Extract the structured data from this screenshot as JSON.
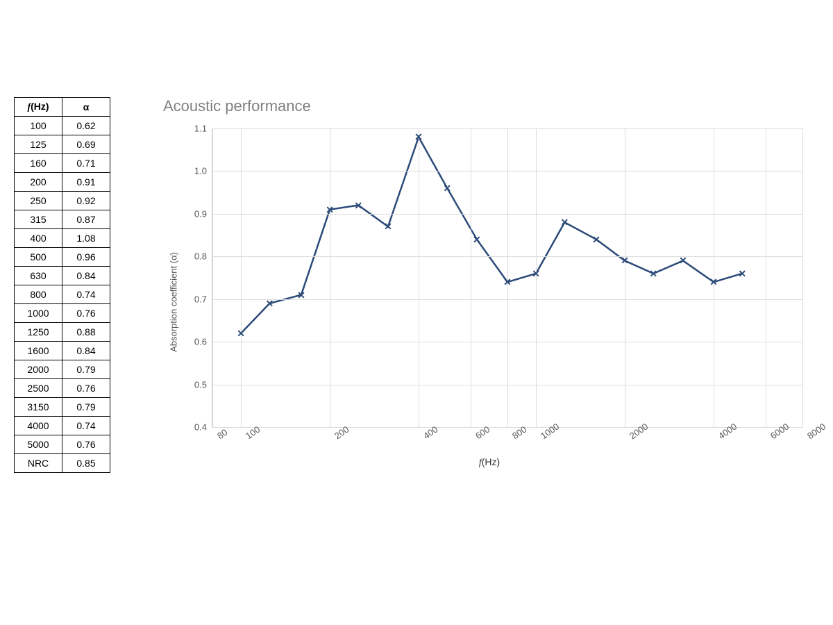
{
  "table": {
    "header_freq": "f(Hz)",
    "header_alpha": "α",
    "rows": [
      {
        "f": "100",
        "a": "0.62"
      },
      {
        "f": "125",
        "a": "0.69"
      },
      {
        "f": "160",
        "a": "0.71"
      },
      {
        "f": "200",
        "a": "0.91"
      },
      {
        "f": "250",
        "a": "0.92"
      },
      {
        "f": "315",
        "a": "0.87"
      },
      {
        "f": "400",
        "a": "1.08"
      },
      {
        "f": "500",
        "a": "0.96"
      },
      {
        "f": "630",
        "a": "0.84"
      },
      {
        "f": "800",
        "a": "0.74"
      },
      {
        "f": "1000",
        "a": "0.76"
      },
      {
        "f": "1250",
        "a": "0.88"
      },
      {
        "f": "1600",
        "a": "0.84"
      },
      {
        "f": "2000",
        "a": "0.79"
      },
      {
        "f": "2500",
        "a": "0.76"
      },
      {
        "f": "3150",
        "a": "0.79"
      },
      {
        "f": "4000",
        "a": "0.74"
      },
      {
        "f": "5000",
        "a": "0.76"
      },
      {
        "f": "NRC",
        "a": "0.85"
      }
    ]
  },
  "chart": {
    "title": "Acoustic performance",
    "type": "line",
    "x_label": "f(Hz)",
    "y_label": "Absorption coefficient (α)",
    "x_scale": "log",
    "x_min": 80,
    "x_max": 8000,
    "x_ticks": [
      80,
      100,
      200,
      400,
      600,
      800,
      1000,
      2000,
      4000,
      6000,
      8000
    ],
    "y_min": 0.4,
    "y_max": 1.1,
    "y_ticks": [
      0.4,
      0.5,
      0.6,
      0.7,
      0.8,
      0.9,
      1.0,
      1.1
    ],
    "y_tick_labels": [
      "0.4",
      "0.5",
      "0.6",
      "0.7",
      "0.8",
      "0.9",
      "1.0",
      "1.1"
    ],
    "grid_color": "#dcdcdc",
    "background_color": "#ffffff",
    "title_color": "#808080",
    "title_fontsize": 22,
    "axis_label_color": "#555555",
    "tick_label_fontsize": 13,
    "series": {
      "color": "#2b4a78",
      "line_width": 2.5,
      "marker": "x",
      "marker_size": 14,
      "points": [
        {
          "x": 100,
          "y": 0.62
        },
        {
          "x": 125,
          "y": 0.69
        },
        {
          "x": 160,
          "y": 0.71
        },
        {
          "x": 200,
          "y": 0.91
        },
        {
          "x": 250,
          "y": 0.92
        },
        {
          "x": 315,
          "y": 0.87
        },
        {
          "x": 400,
          "y": 1.08
        },
        {
          "x": 500,
          "y": 0.96
        },
        {
          "x": 630,
          "y": 0.84
        },
        {
          "x": 800,
          "y": 0.74
        },
        {
          "x": 1000,
          "y": 0.76
        },
        {
          "x": 1250,
          "y": 0.88
        },
        {
          "x": 1600,
          "y": 0.84
        },
        {
          "x": 2000,
          "y": 0.79
        },
        {
          "x": 2500,
          "y": 0.76
        },
        {
          "x": 3150,
          "y": 0.79
        },
        {
          "x": 4000,
          "y": 0.74
        },
        {
          "x": 5000,
          "y": 0.76
        }
      ]
    }
  }
}
